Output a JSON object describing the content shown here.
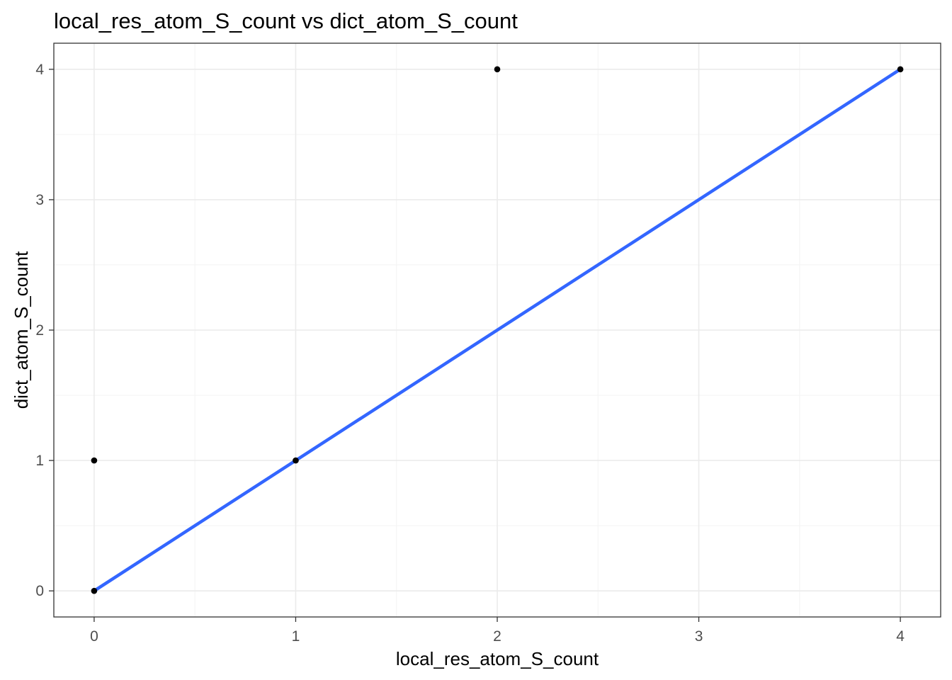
{
  "chart_data": {
    "type": "scatter",
    "title": "local_res_atom_S_count vs dict_atom_S_count",
    "xlabel": "local_res_atom_S_count",
    "ylabel": "dict_atom_S_count",
    "xlim": [
      -0.2,
      4.2
    ],
    "ylim": [
      -0.2,
      4.2
    ],
    "x_ticks": [
      0,
      1,
      2,
      3,
      4
    ],
    "y_ticks": [
      0,
      1,
      2,
      3,
      4
    ],
    "x_minor": [
      0.5,
      1.5,
      2.5,
      3.5
    ],
    "y_minor": [
      0.5,
      1.5,
      2.5,
      3.5
    ],
    "grid": true,
    "legend": "none",
    "points": [
      {
        "x": 0,
        "y": 0
      },
      {
        "x": 0,
        "y": 1
      },
      {
        "x": 1,
        "y": 1
      },
      {
        "x": 2,
        "y": 4
      },
      {
        "x": 4,
        "y": 4
      }
    ],
    "trend_line": {
      "type": "linear fit",
      "x": [
        0,
        4
      ],
      "y": [
        0,
        4
      ],
      "color": "#3366FF"
    },
    "colors": {
      "points": "#000000",
      "grid_major": "#ebebeb",
      "grid_minor": "#f4f4f4",
      "panel_border": "#333333",
      "tick_text": "#4d4d4d"
    }
  }
}
